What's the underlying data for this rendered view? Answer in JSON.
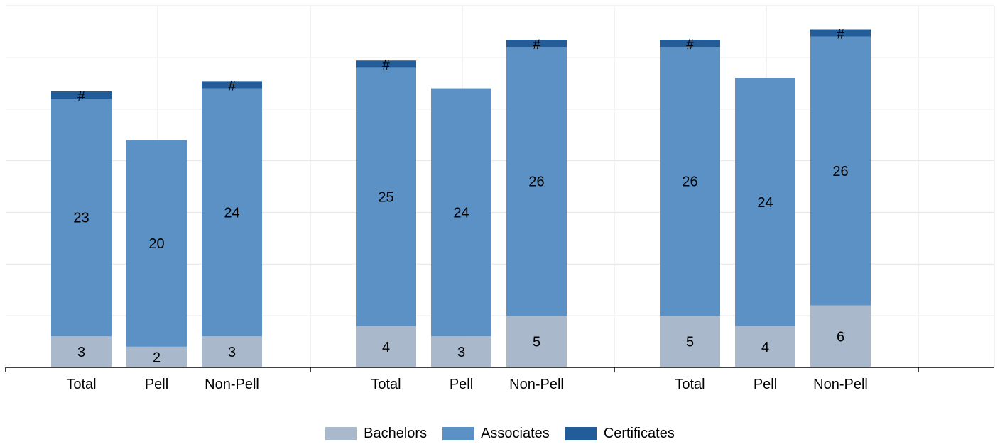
{
  "chart_data": {
    "type": "bar",
    "stacked": true,
    "title": "",
    "xlabel": "",
    "ylabel": "",
    "ylim": [
      0,
      35
    ],
    "grid": true,
    "legend_position": "bottom",
    "groups": [
      {
        "categories": [
          "Total",
          "Pell",
          "Non-Pell"
        ]
      },
      {
        "categories": [
          "Total",
          "Pell",
          "Non-Pell"
        ]
      },
      {
        "categories": [
          "Total",
          "Pell",
          "Non-Pell"
        ]
      }
    ],
    "series": [
      {
        "name": "Bachelors",
        "color": "#a9b9cb",
        "values": [
          [
            3,
            2,
            3
          ],
          [
            4,
            3,
            5
          ],
          [
            5,
            4,
            6
          ]
        ],
        "labels": [
          [
            "3",
            "2",
            "3"
          ],
          [
            "4",
            "3",
            "5"
          ],
          [
            "5",
            "4",
            "6"
          ]
        ]
      },
      {
        "name": "Associates",
        "color": "#5b91c5",
        "values": [
          [
            23,
            20,
            24
          ],
          [
            25,
            24,
            26
          ],
          [
            26,
            24,
            26
          ]
        ],
        "labels": [
          [
            "23",
            "20",
            "24"
          ],
          [
            "25",
            "24",
            "26"
          ],
          [
            "26",
            "24",
            "26"
          ]
        ]
      },
      {
        "name": "Certificates",
        "color": "#225c99",
        "values": [
          [
            0.7,
            0,
            0.7
          ],
          [
            0.7,
            0,
            0.7
          ],
          [
            0.7,
            0,
            0.7
          ]
        ],
        "labels": [
          [
            "#",
            "",
            "#"
          ],
          [
            "#",
            "",
            "#"
          ],
          [
            "#",
            "",
            "#"
          ]
        ]
      }
    ]
  }
}
